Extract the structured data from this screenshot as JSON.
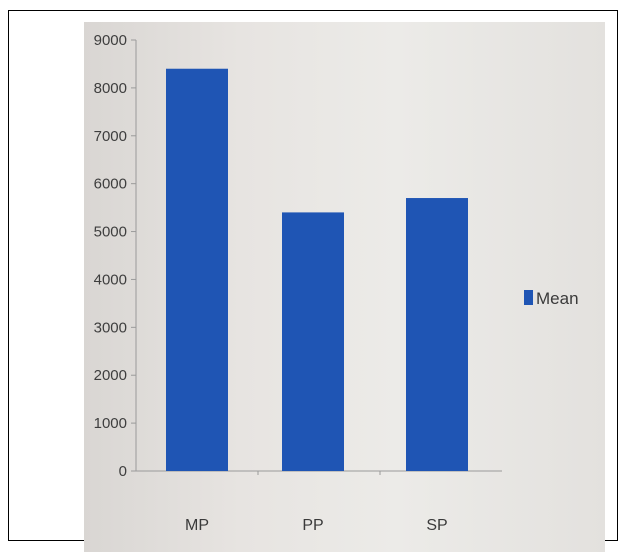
{
  "chart_data": {
    "type": "bar",
    "categories": [
      "MP",
      "PP",
      "SP"
    ],
    "series": [
      {
        "name": "Mean",
        "values": [
          8400,
          5400,
          5700
        ],
        "color": "#1f55b4"
      }
    ],
    "yticks": [
      "0",
      "1000",
      "2000",
      "3000",
      "4000",
      "5000",
      "6000",
      "7000",
      "8000",
      "9000"
    ],
    "ylim": [
      0,
      9000
    ],
    "legend_position": "right",
    "grid": false
  }
}
